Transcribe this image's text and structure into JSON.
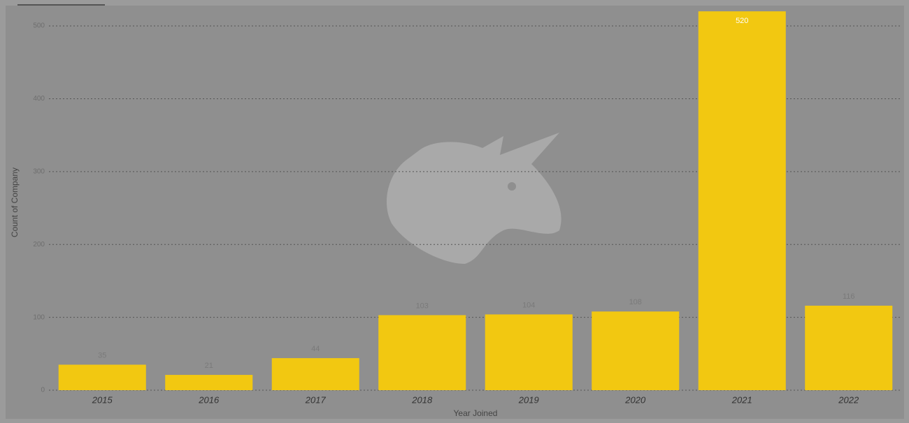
{
  "chart_data": {
    "type": "bar",
    "categories": [
      "2015",
      "2016",
      "2017",
      "2018",
      "2019",
      "2020",
      "2021",
      "2022"
    ],
    "values": [
      35,
      21,
      44,
      103,
      104,
      108,
      520,
      116
    ],
    "color": "#f2c811",
    "ylim": [
      0,
      525
    ],
    "yticks": [
      0,
      100,
      200,
      300,
      400,
      500
    ],
    "grid": true,
    "xlabel": "Year Joined",
    "ylabel": "Count of Company"
  }
}
